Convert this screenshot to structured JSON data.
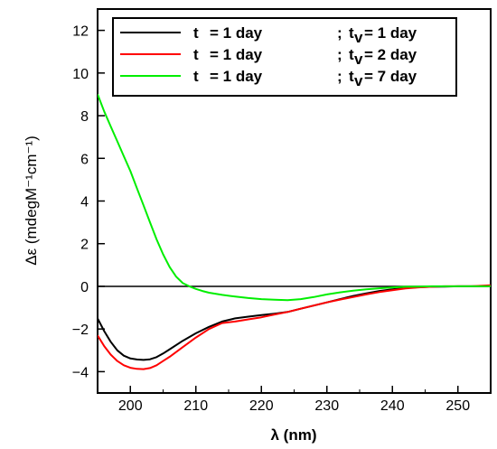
{
  "chart_data": {
    "type": "line",
    "title": "",
    "xlabel": "λ (nm)",
    "ylabel": "Δε (mdegM⁻¹cm⁻¹)",
    "xlim": [
      195,
      255
    ],
    "ylim": [
      -5,
      13
    ],
    "x_ticks": [
      200,
      210,
      220,
      230,
      240,
      250
    ],
    "y_ticks": [
      -4,
      -2,
      0,
      2,
      4,
      6,
      8,
      10,
      12
    ],
    "zero_line": true,
    "grid": false,
    "legend_position": "top-right",
    "series": [
      {
        "name": "t = 1 day ; tv = 1 day",
        "legend": {
          "t": "t",
          "t_value": "=  1 day",
          "sep": ";",
          "tv": "t",
          "tv_sub": "v",
          "tv_value": "=  1 day"
        },
        "color": "#000000",
        "x": [
          195,
          196,
          197,
          198,
          199,
          200,
          201,
          202,
          203,
          204,
          205,
          206,
          208,
          210,
          212,
          214,
          216,
          218,
          220,
          222,
          224,
          226,
          228,
          230,
          232,
          234,
          236,
          238,
          240,
          242,
          244,
          246,
          248,
          250,
          252,
          255
        ],
        "y": [
          -1.5,
          -2.1,
          -2.6,
          -3.0,
          -3.25,
          -3.38,
          -3.43,
          -3.45,
          -3.42,
          -3.32,
          -3.15,
          -2.95,
          -2.55,
          -2.2,
          -1.9,
          -1.65,
          -1.5,
          -1.42,
          -1.35,
          -1.28,
          -1.2,
          -1.05,
          -0.9,
          -0.75,
          -0.6,
          -0.45,
          -0.33,
          -0.22,
          -0.14,
          -0.08,
          -0.04,
          -0.02,
          -0.01,
          0.0,
          0.0,
          0.0
        ]
      },
      {
        "name": "t = 1 day ; tv = 2 day",
        "legend": {
          "t": "t",
          "t_value": "=  1 day",
          "sep": ";",
          "tv": "t",
          "tv_sub": "v",
          "tv_value": "=  2 day"
        },
        "color": "#ff0000",
        "x": [
          195,
          196,
          197,
          198,
          199,
          200,
          201,
          202,
          203,
          204,
          205,
          206,
          208,
          210,
          212,
          214,
          216,
          218,
          220,
          222,
          224,
          226,
          228,
          230,
          232,
          234,
          236,
          238,
          240,
          242,
          244,
          246,
          248,
          250,
          252,
          255
        ],
        "y": [
          -2.3,
          -2.8,
          -3.2,
          -3.5,
          -3.7,
          -3.82,
          -3.87,
          -3.88,
          -3.83,
          -3.7,
          -3.5,
          -3.3,
          -2.85,
          -2.4,
          -2.0,
          -1.72,
          -1.65,
          -1.55,
          -1.45,
          -1.32,
          -1.2,
          -1.05,
          -0.9,
          -0.75,
          -0.62,
          -0.5,
          -0.38,
          -0.27,
          -0.18,
          -0.1,
          -0.05,
          -0.02,
          0.0,
          0.0,
          0.0,
          0.05
        ]
      },
      {
        "name": "t = 1 day ; tv = 7 day",
        "legend": {
          "t": "t",
          "t_value": "=  1 day",
          "sep": ";",
          "tv": "t",
          "tv_sub": "v",
          "tv_value": "=  7 day"
        },
        "color": "#00ee00",
        "x": [
          195,
          196,
          197,
          198,
          199,
          200,
          201,
          202,
          203,
          204,
          205,
          206,
          207,
          208,
          209,
          210,
          211,
          212,
          214,
          216,
          218,
          220,
          222,
          224,
          226,
          228,
          230,
          232,
          234,
          236,
          238,
          240,
          242,
          244,
          246,
          248,
          250,
          252,
          255
        ],
        "y": [
          9.0,
          8.2,
          7.5,
          6.8,
          6.1,
          5.4,
          4.6,
          3.8,
          3.0,
          2.2,
          1.5,
          0.9,
          0.45,
          0.15,
          0.0,
          -0.12,
          -0.22,
          -0.3,
          -0.4,
          -0.48,
          -0.55,
          -0.6,
          -0.63,
          -0.65,
          -0.6,
          -0.5,
          -0.38,
          -0.28,
          -0.2,
          -0.14,
          -0.09,
          -0.05,
          -0.02,
          -0.01,
          0.0,
          0.0,
          0.0,
          0.0,
          0.0
        ]
      }
    ]
  }
}
